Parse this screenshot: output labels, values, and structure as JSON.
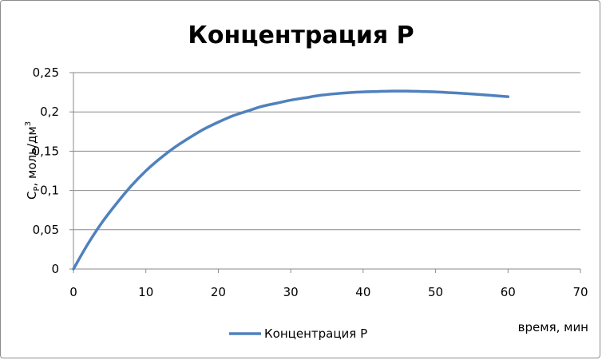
{
  "chart_data": {
    "type": "line",
    "title": "Концентрация Р",
    "xlabel": "время, мин",
    "ylabel": "C_P , моль/дм³",
    "ylabel_parts": {
      "main": "C",
      "sub": "P",
      "rest": ", моль/дм",
      "sup": "3"
    },
    "xlim": [
      0,
      70
    ],
    "ylim": [
      0,
      0.25
    ],
    "x_ticks": [
      "0",
      "10",
      "20",
      "30",
      "40",
      "50",
      "60",
      "70"
    ],
    "x_tick_values": [
      0,
      10,
      20,
      30,
      40,
      50,
      60,
      70
    ],
    "y_ticks": [
      "0",
      "0,05",
      "0,1",
      "0,15",
      "0,2",
      "0,25"
    ],
    "y_tick_values": [
      0,
      0.05,
      0.1,
      0.15,
      0.2,
      0.25
    ],
    "grid": "horizontal",
    "legend_position": "bottom",
    "series": [
      {
        "name": "Концентрация Р",
        "color": "#4f81bd",
        "x": [
          0,
          2,
          4,
          6,
          8,
          10,
          12,
          14,
          16,
          18,
          20,
          22,
          24,
          26,
          28,
          30,
          32,
          34,
          36,
          38,
          40,
          42,
          44,
          46,
          48,
          50,
          52,
          54,
          56,
          58,
          60
        ],
        "y": [
          0,
          0.032,
          0.06,
          0.084,
          0.106,
          0.125,
          0.141,
          0.155,
          0.167,
          0.178,
          0.187,
          0.195,
          0.201,
          0.207,
          0.211,
          0.215,
          0.218,
          0.221,
          0.223,
          0.2245,
          0.2255,
          0.226,
          0.2265,
          0.2265,
          0.226,
          0.2255,
          0.2245,
          0.2235,
          0.2222,
          0.2208,
          0.2194
        ]
      }
    ]
  }
}
